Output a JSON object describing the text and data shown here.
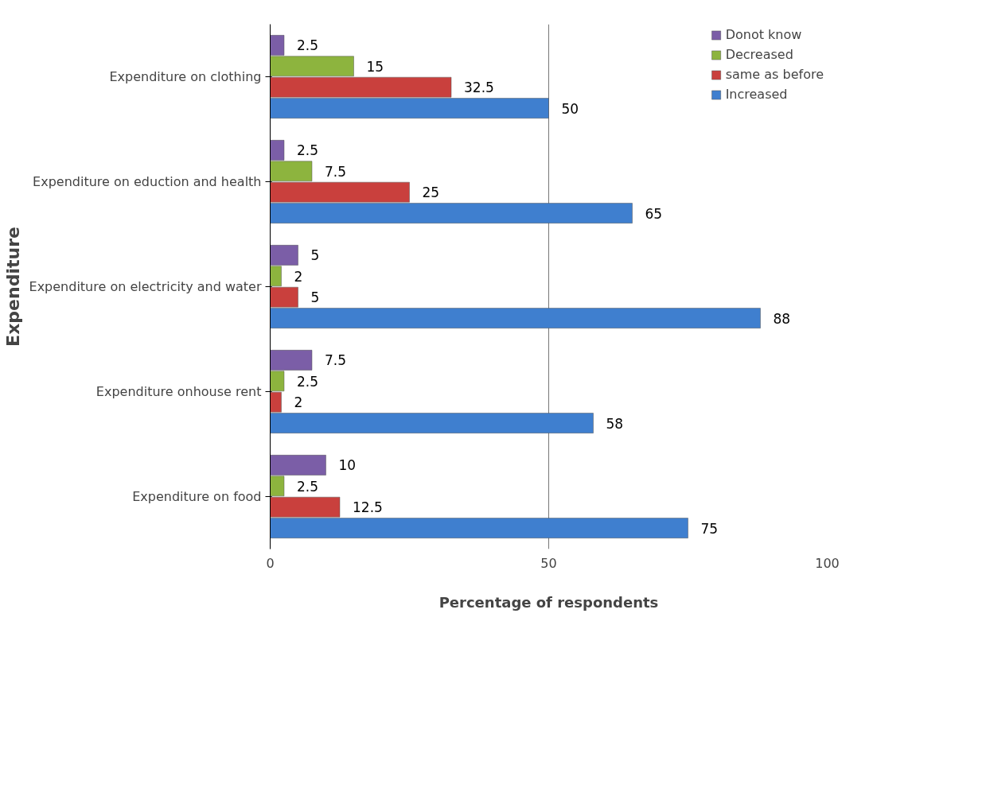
{
  "chart_data": {
    "type": "bar",
    "orientation": "horizontal",
    "categories": [
      "Expenditure on clothing",
      "Expenditure on eduction and health",
      "Expenditure on electricity and water",
      "Expenditure onhouse rent",
      "Expenditure on food"
    ],
    "series": [
      {
        "name": "Donot know",
        "color": "#7b5ea7",
        "values": [
          2.5,
          2.5,
          5,
          7.5,
          10
        ]
      },
      {
        "name": "Decreased",
        "color": "#8db43e",
        "values": [
          15,
          7.5,
          2,
          2.5,
          2.5
        ]
      },
      {
        "name": "same as before",
        "color": "#c9403d",
        "values": [
          32.5,
          25,
          5,
          2,
          12.5
        ]
      },
      {
        "name": "Increased",
        "color": "#3f7fcf",
        "values": [
          50,
          65,
          88,
          58,
          75
        ]
      }
    ],
    "xlim": [
      0,
      100
    ],
    "xticks": [
      0,
      50,
      100
    ],
    "grid": "x",
    "data_labels": true,
    "legend": "top right",
    "xlabel": "Percentage of respondents",
    "ylabel": "Expenditure"
  }
}
